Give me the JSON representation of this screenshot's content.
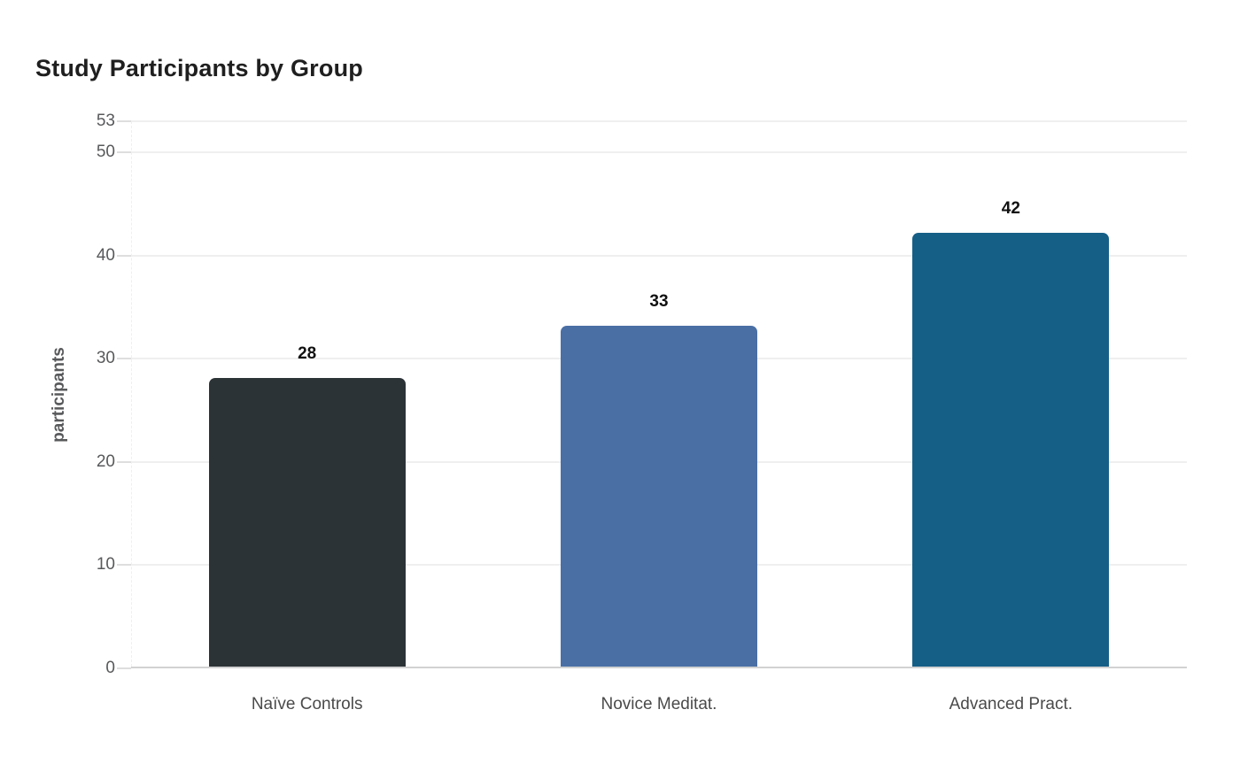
{
  "chart_data": {
    "type": "bar",
    "title": "Study Participants by Group",
    "ylabel": "participants",
    "xlabel": "",
    "categories": [
      "Naïve Controls",
      "Novice Meditat.",
      "Advanced Pract."
    ],
    "values": [
      28,
      33,
      42
    ],
    "bar_colors": [
      "#2c3337",
      "#4a6fa5",
      "#155f87"
    ],
    "yticks": [
      0,
      10,
      20,
      30,
      40,
      50,
      53
    ],
    "ylim": [
      0,
      53
    ],
    "grid": "horizontal-light",
    "legend": "none",
    "value_labels_shown": true
  },
  "colors": {
    "background": "#ffffff",
    "title_text": "#1f1f1f",
    "tick_text": "#58595b",
    "category_text": "#4a4a4a",
    "value_label_text": "#111111",
    "gridline": "#efefef",
    "axis_line": "#d2d2d2",
    "tick_mark": "#dedede"
  }
}
